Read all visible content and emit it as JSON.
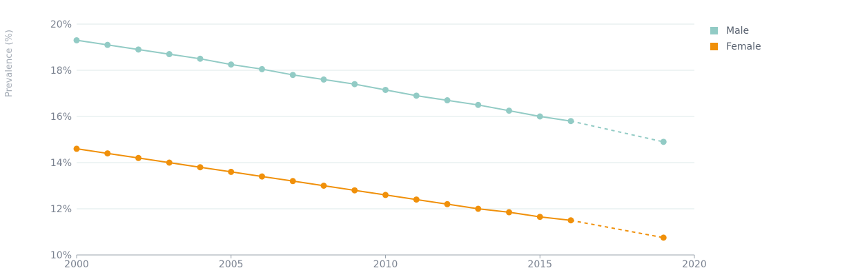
{
  "chart_data": {
    "type": "line",
    "ylabel": "Prevalence (%)",
    "xlim": [
      2000,
      2020
    ],
    "ylim": [
      10,
      20
    ],
    "x_ticks": [
      "2000",
      "2005",
      "2010",
      "2015",
      "2020"
    ],
    "y_ticks": [
      "10%",
      "12%",
      "14%",
      "16%",
      "18%",
      "20%"
    ],
    "grid": true,
    "legend_position": "top-right",
    "series": [
      {
        "name": "Male",
        "color": "#92cbc5",
        "x": [
          2000,
          2001,
          2002,
          2003,
          2004,
          2005,
          2006,
          2007,
          2008,
          2009,
          2010,
          2011,
          2012,
          2013,
          2014,
          2015,
          2016
        ],
        "values": [
          19.3,
          19.1,
          18.9,
          18.7,
          18.5,
          18.25,
          18.05,
          17.8,
          17.6,
          17.4,
          17.15,
          16.9,
          16.7,
          16.5,
          16.25,
          16.0,
          15.8
        ],
        "projection": {
          "x": [
            2016,
            2019
          ],
          "values": [
            15.8,
            14.9
          ]
        }
      },
      {
        "name": "Female",
        "color": "#f0900a",
        "x": [
          2000,
          2001,
          2002,
          2003,
          2004,
          2005,
          2006,
          2007,
          2008,
          2009,
          2010,
          2011,
          2012,
          2013,
          2014,
          2015,
          2016
        ],
        "values": [
          14.6,
          14.4,
          14.2,
          14.0,
          13.8,
          13.6,
          13.4,
          13.2,
          13.0,
          12.8,
          12.6,
          12.4,
          12.2,
          12.0,
          11.85,
          11.65,
          11.5
        ],
        "projection": {
          "x": [
            2016,
            2019
          ],
          "values": [
            11.5,
            10.75
          ]
        }
      }
    ]
  }
}
